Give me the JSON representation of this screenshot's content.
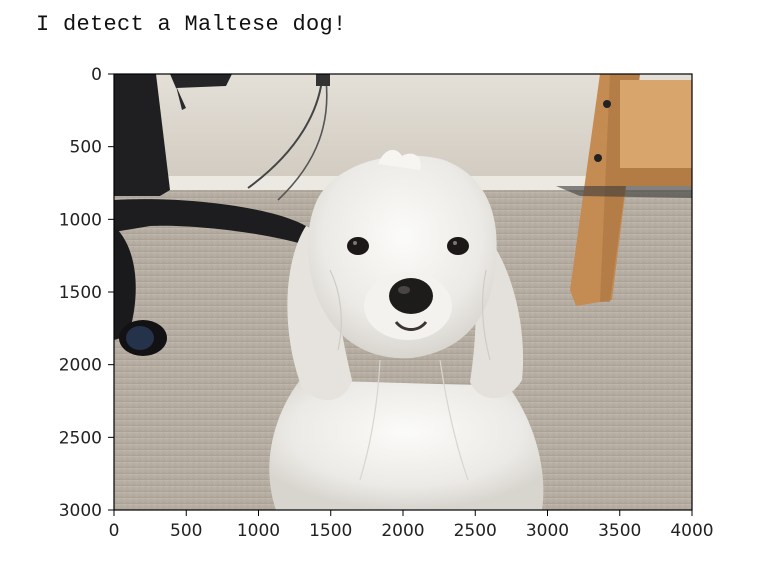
{
  "output": {
    "text": "I detect a Maltese dog!"
  },
  "image_plot": {
    "x_ticks": [
      "0",
      "500",
      "1000",
      "1500",
      "2000",
      "2500",
      "3000",
      "3500",
      "4000"
    ],
    "y_ticks": [
      "0",
      "500",
      "1000",
      "1500",
      "2000",
      "2500",
      "3000"
    ],
    "colors": {
      "wall": "#d9d4ca",
      "carpet": "#b7ada2",
      "dog_fur": "#efefec",
      "chair": "#1c1c1f",
      "wood": "#c98e55",
      "nose": "#1e1b1b"
    }
  }
}
